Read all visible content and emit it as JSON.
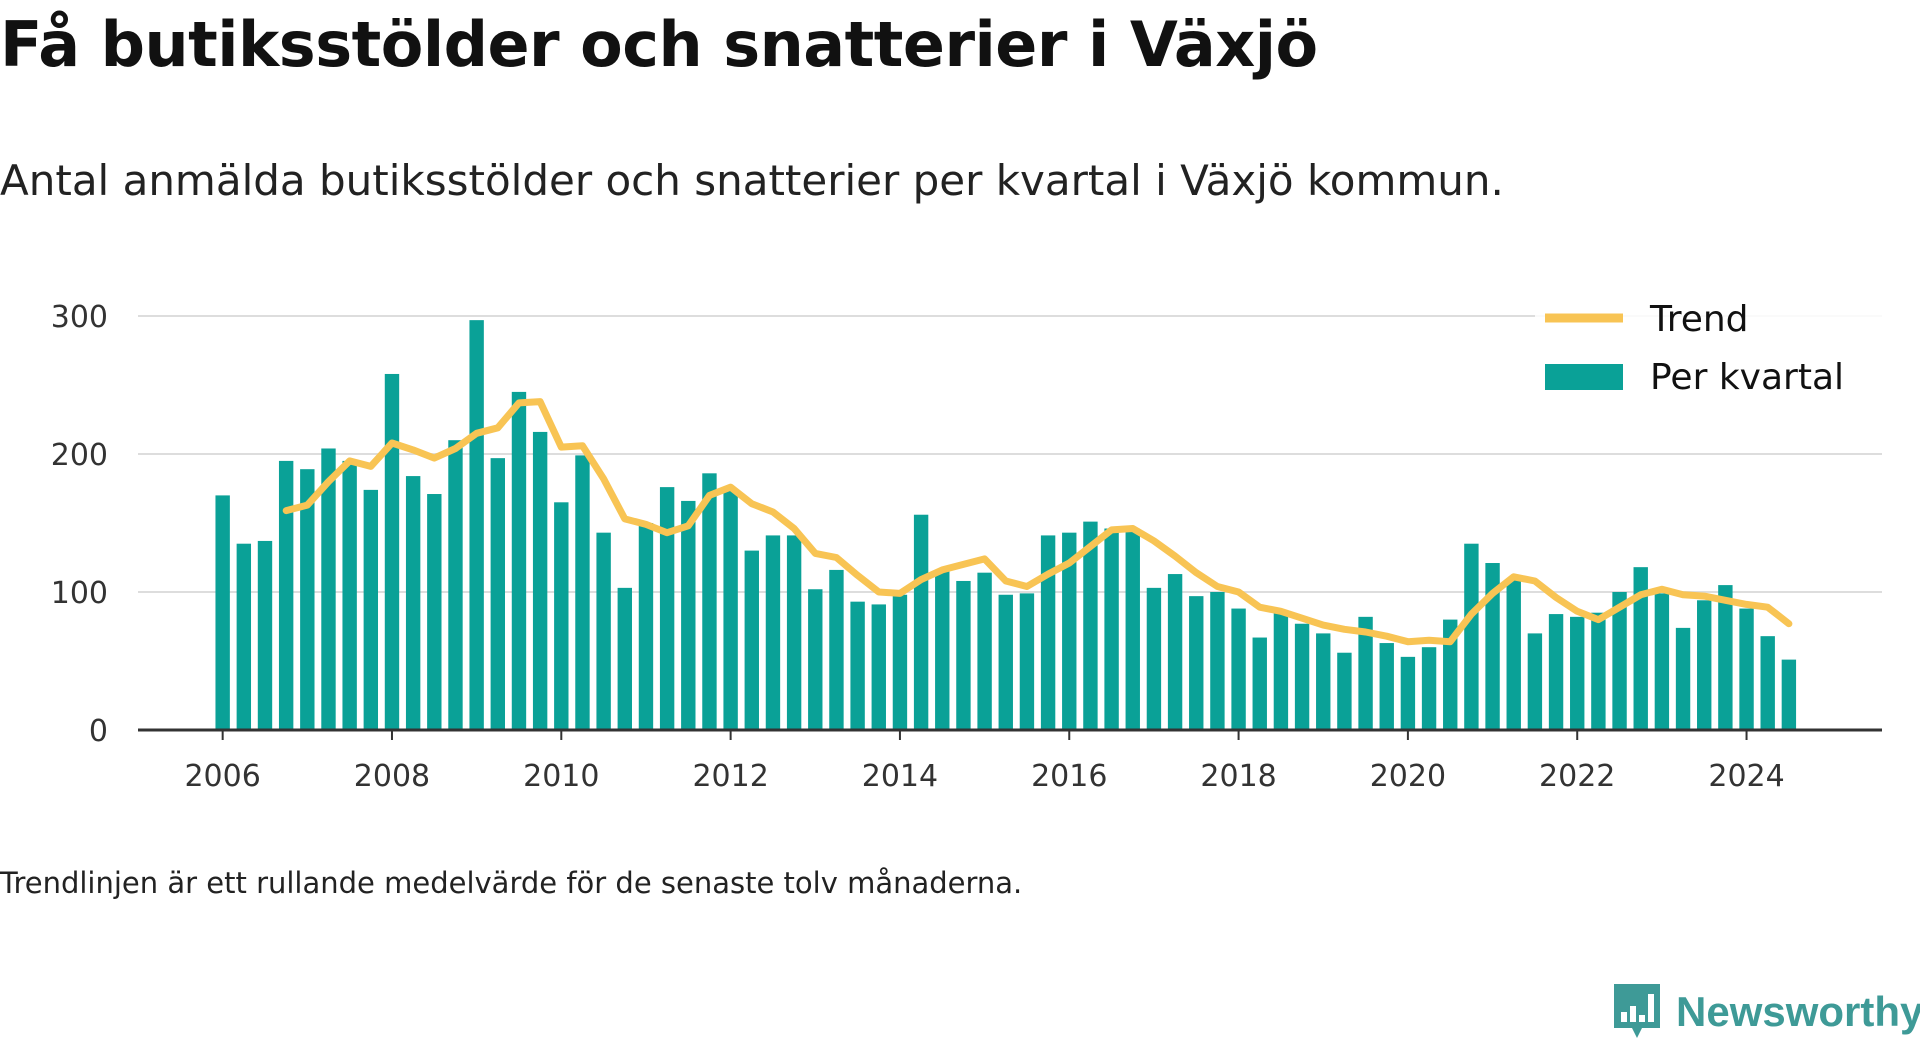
{
  "chart_data": {
    "type": "bar",
    "title": "Få butiksstölder och snatterier i Växjö",
    "subtitle": "Antal anmälda butiksstölder och snatterier per kvartal i Växjö kommun.",
    "footnote": "Trendlinjen är ett rullande medelvärde för de senaste tolv månaderna.",
    "x_ticks": [
      "2006",
      "2008",
      "2010",
      "2012",
      "2014",
      "2016",
      "2018",
      "2020",
      "2022",
      "2024"
    ],
    "y_ticks": [
      "0",
      "100",
      "200",
      "300"
    ],
    "ylim": [
      0,
      300
    ],
    "xlim": [
      2005.0,
      2025.6
    ],
    "grid": true,
    "legend_position": "top-right",
    "x": [
      2006.0,
      2006.25,
      2006.5,
      2006.75,
      2007.0,
      2007.25,
      2007.5,
      2007.75,
      2008.0,
      2008.25,
      2008.5,
      2008.75,
      2009.0,
      2009.25,
      2009.5,
      2009.75,
      2010.0,
      2010.25,
      2010.5,
      2010.75,
      2011.0,
      2011.25,
      2011.5,
      2011.75,
      2012.0,
      2012.25,
      2012.5,
      2012.75,
      2013.0,
      2013.25,
      2013.5,
      2013.75,
      2014.0,
      2014.25,
      2014.5,
      2014.75,
      2015.0,
      2015.25,
      2015.5,
      2015.75,
      2016.0,
      2016.25,
      2016.5,
      2016.75,
      2017.0,
      2017.25,
      2017.5,
      2017.75,
      2018.0,
      2018.25,
      2018.5,
      2018.75,
      2019.0,
      2019.25,
      2019.5,
      2019.75,
      2020.0,
      2020.25,
      2020.5,
      2020.75,
      2021.0,
      2021.25,
      2021.5,
      2021.75,
      2022.0,
      2022.25,
      2022.5,
      2022.75,
      2023.0,
      2023.25,
      2023.5,
      2023.75,
      2024.0,
      2024.25,
      2024.5
    ],
    "series": [
      {
        "name": "Per kvartal",
        "type": "bar",
        "color": "#0aa197",
        "values": [
          170,
          135,
          137,
          195,
          189,
          204,
          195,
          174,
          258,
          184,
          171,
          210,
          297,
          197,
          245,
          216,
          165,
          199,
          143,
          103,
          150,
          176,
          166,
          186,
          175,
          130,
          141,
          141,
          102,
          116,
          93,
          91,
          98,
          156,
          116,
          108,
          114,
          98,
          99,
          141,
          143,
          151,
          146,
          146,
          103,
          113,
          97,
          100,
          88,
          67,
          85,
          77,
          70,
          56,
          82,
          63,
          53,
          60,
          80,
          135,
          121,
          109,
          70,
          84,
          82,
          85,
          100,
          118,
          99,
          74,
          94,
          105,
          88,
          68,
          51
        ]
      },
      {
        "name": "Trend",
        "type": "line",
        "color": "#f8c454",
        "values": [
          null,
          null,
          null,
          159,
          163,
          180,
          195,
          191,
          208,
          203,
          197,
          204,
          215,
          219,
          237,
          238,
          205,
          206,
          182,
          153,
          149,
          143,
          148,
          170,
          176,
          164,
          158,
          146,
          128,
          125,
          112,
          100,
          99,
          109,
          116,
          120,
          124,
          108,
          104,
          113,
          121,
          133,
          145,
          146,
          137,
          126,
          114,
          104,
          100,
          89,
          86,
          81,
          76,
          73,
          71,
          68,
          64,
          65,
          64,
          84,
          99,
          111,
          108,
          96,
          86,
          80,
          89,
          98,
          102,
          98,
          97,
          94,
          91,
          89,
          77
        ]
      }
    ]
  },
  "brand": {
    "name": "Newsworthy",
    "icon": "newsworthy-logo-icon",
    "color": "#3e9a97"
  }
}
